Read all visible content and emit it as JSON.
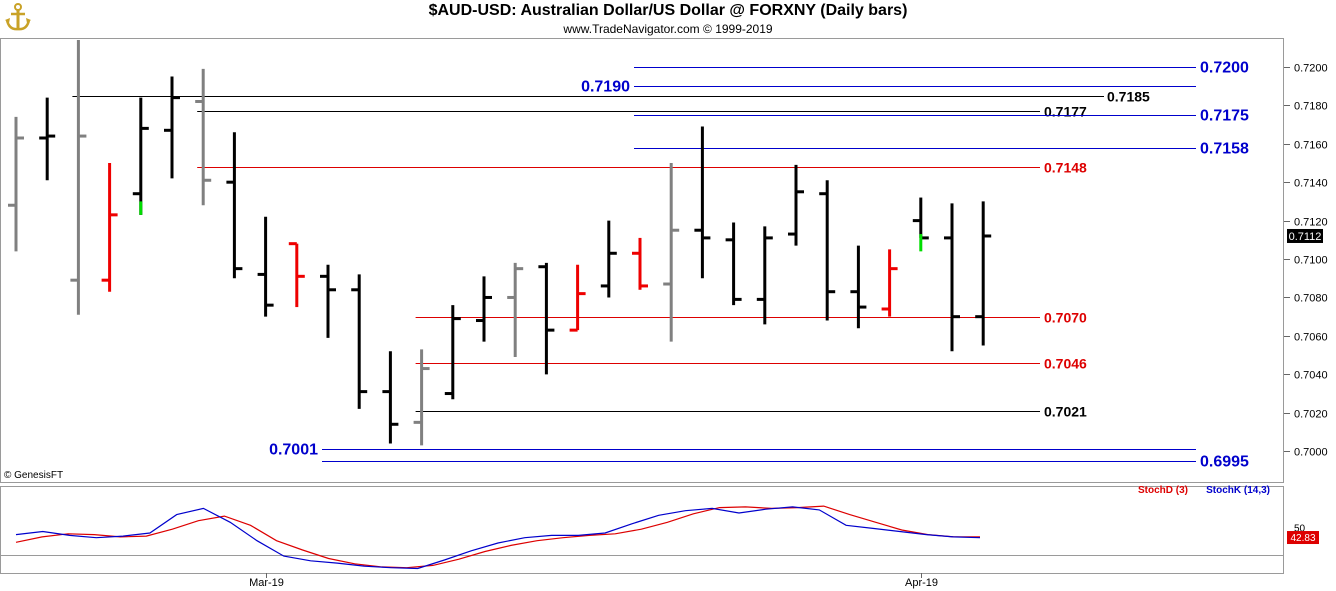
{
  "header": {
    "title": "$AUD-USD:  Australian Dollar/US Dollar @ FORXNY  (Daily bars)",
    "subtitle": "www.TradeNavigator.com © 1999-2019"
  },
  "footer": {
    "credit": "© GenesisFT"
  },
  "colors": {
    "up_bar": "#000000",
    "down_bar": "#ee0000",
    "neutral_bar": "#808080",
    "signal": "#00dd00",
    "level_blue": "#0000cc",
    "level_red": "#dd0000",
    "level_black": "#000000",
    "stoch_d": "#dd0000",
    "stoch_k": "#0000cc"
  },
  "chart_data": [
    {
      "type": "ohlc",
      "title": "$AUD-USD:  Australian Dollar/US Dollar @ FORXNY  (Daily bars)",
      "ylim": [
        0.6985,
        0.7214
      ],
      "y_ticks": [
        "0.7200",
        "0.7180",
        "0.7160",
        "0.7140",
        "0.7120",
        "0.7100",
        "0.7080",
        "0.7060",
        "0.7040",
        "0.7020",
        "0.7000"
      ],
      "x_ticks": [
        {
          "label": "Mar-19",
          "bar": 8
        },
        {
          "label": "Apr-19",
          "bar": 29
        }
      ],
      "last_price": "0.7112",
      "bars": [
        {
          "o": 0.7128,
          "h": 0.7174,
          "l": 0.7104,
          "c": 0.7163,
          "color": "neutral"
        },
        {
          "o": 0.7163,
          "h": 0.7184,
          "l": 0.7141,
          "c": 0.7164,
          "color": "up"
        },
        {
          "o": 0.7089,
          "h": 0.7214,
          "l": 0.7071,
          "c": 0.7164,
          "color": "neutral"
        },
        {
          "o": 0.7089,
          "h": 0.715,
          "l": 0.7083,
          "c": 0.7123,
          "color": "down"
        },
        {
          "o": 0.7134,
          "h": 0.7184,
          "l": 0.7123,
          "c": 0.7168,
          "color": "up",
          "signal": {
            "from": 0.713,
            "to": 0.7123
          }
        },
        {
          "o": 0.7167,
          "h": 0.7195,
          "l": 0.7142,
          "c": 0.7184,
          "color": "up"
        },
        {
          "o": 0.7182,
          "h": 0.7199,
          "l": 0.7128,
          "c": 0.7141,
          "color": "neutral"
        },
        {
          "o": 0.714,
          "h": 0.7166,
          "l": 0.709,
          "c": 0.7095,
          "color": "up"
        },
        {
          "o": 0.7092,
          "h": 0.7122,
          "l": 0.707,
          "c": 0.7076,
          "color": "up"
        },
        {
          "o": 0.7108,
          "h": 0.7108,
          "l": 0.7075,
          "c": 0.7091,
          "color": "down"
        },
        {
          "o": 0.7091,
          "h": 0.7097,
          "l": 0.7059,
          "c": 0.7084,
          "color": "up"
        },
        {
          "o": 0.7084,
          "h": 0.7092,
          "l": 0.7022,
          "c": 0.7031,
          "color": "up"
        },
        {
          "o": 0.7031,
          "h": 0.7052,
          "l": 0.7004,
          "c": 0.7014,
          "color": "up"
        },
        {
          "o": 0.7015,
          "h": 0.7053,
          "l": 0.7003,
          "c": 0.7043,
          "color": "neutral"
        },
        {
          "o": 0.703,
          "h": 0.7076,
          "l": 0.7027,
          "c": 0.7069,
          "color": "up"
        },
        {
          "o": 0.7068,
          "h": 0.7091,
          "l": 0.7057,
          "c": 0.708,
          "color": "up"
        },
        {
          "o": 0.708,
          "h": 0.7098,
          "l": 0.7049,
          "c": 0.7095,
          "color": "neutral"
        },
        {
          "o": 0.7096,
          "h": 0.7098,
          "l": 0.704,
          "c": 0.7063,
          "color": "up"
        },
        {
          "o": 0.7063,
          "h": 0.7097,
          "l": 0.7063,
          "c": 0.7082,
          "color": "down"
        },
        {
          "o": 0.7086,
          "h": 0.712,
          "l": 0.708,
          "c": 0.7103,
          "color": "up"
        },
        {
          "o": 0.7103,
          "h": 0.7111,
          "l": 0.7084,
          "c": 0.7086,
          "color": "down"
        },
        {
          "o": 0.7087,
          "h": 0.715,
          "l": 0.7057,
          "c": 0.7115,
          "color": "neutral"
        },
        {
          "o": 0.7115,
          "h": 0.7169,
          "l": 0.709,
          "c": 0.7111,
          "color": "up"
        },
        {
          "o": 0.711,
          "h": 0.7119,
          "l": 0.7076,
          "c": 0.7079,
          "color": "up"
        },
        {
          "o": 0.7079,
          "h": 0.7117,
          "l": 0.7066,
          "c": 0.7111,
          "color": "up"
        },
        {
          "o": 0.7113,
          "h": 0.7149,
          "l": 0.7107,
          "c": 0.7135,
          "color": "up"
        },
        {
          "o": 0.7134,
          "h": 0.7141,
          "l": 0.7068,
          "c": 0.7083,
          "color": "up"
        },
        {
          "o": 0.7083,
          "h": 0.7107,
          "l": 0.7064,
          "c": 0.7075,
          "color": "up"
        },
        {
          "o": 0.7074,
          "h": 0.7105,
          "l": 0.707,
          "c": 0.7095,
          "color": "down"
        },
        {
          "o": 0.712,
          "h": 0.7132,
          "l": 0.7111,
          "c": 0.7111,
          "color": "up",
          "signal": {
            "from": 0.7113,
            "to": 0.7104
          }
        },
        {
          "o": 0.7111,
          "h": 0.7129,
          "l": 0.7052,
          "c": 0.707,
          "color": "up"
        },
        {
          "o": 0.707,
          "h": 0.713,
          "l": 0.7055,
          "c": 0.7112,
          "color": "up"
        }
      ],
      "levels": [
        {
          "value": 0.72,
          "label": "0.7200",
          "color": "blue",
          "label_side": "right",
          "from_bar": 20
        },
        {
          "value": 0.719,
          "label": "0.7190",
          "color": "blue",
          "label_side": "start",
          "from_bar": 20
        },
        {
          "value": 0.7185,
          "label": "0.7185",
          "color": "black",
          "label_side": "far",
          "from_bar": 2
        },
        {
          "value": 0.7177,
          "label": "0.7177",
          "color": "black",
          "label_side": "mid",
          "from_bar": 6
        },
        {
          "value": 0.7175,
          "label": "0.7175",
          "color": "blue",
          "label_side": "right",
          "from_bar": 20
        },
        {
          "value": 0.7158,
          "label": "0.7158",
          "color": "blue",
          "label_side": "right",
          "from_bar": 20
        },
        {
          "value": 0.7148,
          "label": "0.7148",
          "color": "red",
          "label_side": "mid",
          "from_bar": 6
        },
        {
          "value": 0.707,
          "label": "0.7070",
          "color": "red",
          "label_side": "mid",
          "from_bar": 13
        },
        {
          "value": 0.7046,
          "label": "0.7046",
          "color": "red",
          "label_side": "mid",
          "from_bar": 13
        },
        {
          "value": 0.7021,
          "label": "0.7021",
          "color": "black",
          "label_side": "mid",
          "from_bar": 13
        },
        {
          "value": 0.7001,
          "label": "0.7001",
          "color": "blue",
          "label_side": "start",
          "from_bar": 10
        },
        {
          "value": 0.6995,
          "label": "0.6995",
          "color": "blue",
          "label_side": "right",
          "from_bar": 10
        }
      ]
    },
    {
      "type": "line",
      "title": "Stochastic",
      "ylim": [
        0,
        100
      ],
      "y_ticks": [
        "50"
      ],
      "last_value": "42.83",
      "series": [
        {
          "name": "StochD (3)",
          "color": "stoch_d",
          "values": [
            36,
            43,
            47,
            46,
            43,
            44,
            53,
            64,
            70,
            58,
            38,
            26,
            15,
            8,
            4,
            3,
            6,
            14,
            24,
            32,
            38,
            42,
            45,
            47,
            53,
            62,
            73,
            81,
            82,
            80,
            81,
            83,
            72,
            62,
            52,
            46,
            43,
            43
          ]
        },
        {
          "name": "StochK (14,3)",
          "color": "stoch_k",
          "values": [
            46,
            50,
            45,
            42,
            44,
            48,
            72,
            80,
            62,
            38,
            18,
            12,
            9,
            5,
            3,
            2,
            13,
            25,
            35,
            42,
            45,
            45,
            48,
            60,
            71,
            77,
            80,
            74,
            79,
            82,
            78,
            58,
            54,
            50,
            46,
            43,
            42
          ]
        }
      ]
    }
  ]
}
